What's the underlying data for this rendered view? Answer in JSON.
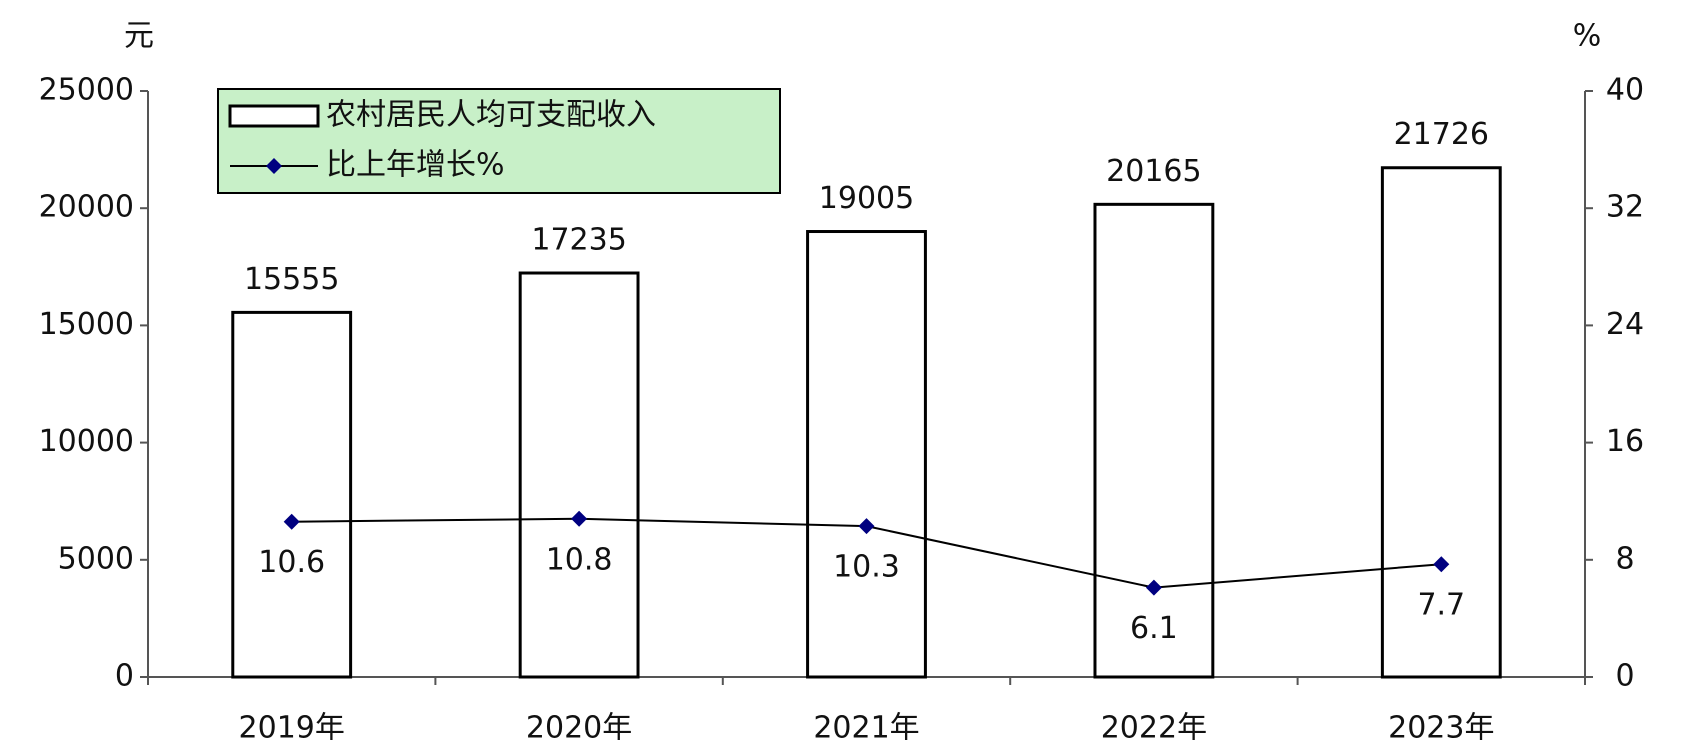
{
  "chart_data": {
    "type": "combo",
    "ylabel": "元",
    "y2label": "%",
    "categories": [
      "2019年",
      "2020年",
      "2021年",
      "2022年",
      "2023年"
    ],
    "series": [
      {
        "name": "农村居民人均可支配收入",
        "type": "bar",
        "axis": "y",
        "color": "#ffffff",
        "values": [
          15555,
          17235,
          19005,
          20165,
          21726
        ]
      },
      {
        "name": "比上年增长%",
        "type": "line",
        "axis": "y2",
        "color": "#000080",
        "values": [
          10.6,
          10.8,
          10.3,
          6.1,
          7.7
        ]
      }
    ],
    "ylim": [
      0,
      25000
    ],
    "yticks": [
      0,
      5000,
      10000,
      15000,
      20000,
      25000
    ],
    "y2lim": [
      0,
      40
    ],
    "y2ticks": [
      0,
      8,
      16,
      24,
      32,
      40
    ],
    "legend": "upper left",
    "legend_color": "#c8f0c8"
  }
}
